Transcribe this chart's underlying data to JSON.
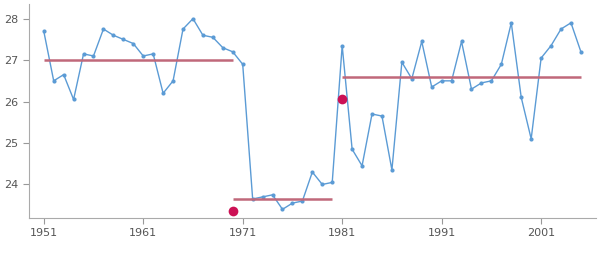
{
  "years": [
    1951,
    1952,
    1953,
    1954,
    1955,
    1956,
    1957,
    1958,
    1959,
    1960,
    1961,
    1962,
    1963,
    1964,
    1965,
    1966,
    1967,
    1968,
    1969,
    1970,
    1971,
    1972,
    1973,
    1974,
    1975,
    1976,
    1977,
    1978,
    1979,
    1980,
    1981,
    1982,
    1983,
    1984,
    1985,
    1986,
    1987,
    1988,
    1989,
    1990,
    1991,
    1992,
    1993,
    1994,
    1995,
    1996,
    1997,
    1998,
    1999,
    2000,
    2001,
    2002,
    2003,
    2004,
    2005
  ],
  "values": [
    27.7,
    26.5,
    26.65,
    26.05,
    27.15,
    27.1,
    27.75,
    27.6,
    27.5,
    27.4,
    27.1,
    27.15,
    26.2,
    26.5,
    27.75,
    28.0,
    27.6,
    27.55,
    27.3,
    27.2,
    26.9,
    23.65,
    23.7,
    23.75,
    23.4,
    23.55,
    23.6,
    24.3,
    24.0,
    24.05,
    27.35,
    24.85,
    24.45,
    25.7,
    25.65,
    24.35,
    26.95,
    26.55,
    27.45,
    26.35,
    26.5,
    26.5,
    27.45,
    26.3,
    26.45,
    26.5,
    26.9,
    27.9,
    26.1,
    25.1,
    27.05,
    27.35,
    27.75,
    27.9,
    27.2
  ],
  "change_point_years": [
    1970,
    1981
  ],
  "change_point_values": [
    23.35,
    26.05
  ],
  "segments": [
    {
      "x_start": 1951,
      "x_end": 1970,
      "mean": 27.0
    },
    {
      "x_start": 1970,
      "x_end": 1980,
      "mean": 23.65
    },
    {
      "x_start": 1981,
      "x_end": 2005,
      "mean": 26.6
    }
  ],
  "line_color": "#5B9BD5",
  "change_point_color": "#CC1155",
  "segment_mean_color": "#C0687A",
  "background_color": "#ffffff",
  "plot_bg_color": "#ffffff",
  "xlim_min": 1949.5,
  "xlim_max": 2006.5,
  "ylim_min": 23.2,
  "ylim_max": 28.35,
  "xticks": [
    1951,
    1961,
    1971,
    1981,
    1991,
    2001
  ],
  "yticks": [
    24,
    25,
    26,
    27,
    28
  ]
}
